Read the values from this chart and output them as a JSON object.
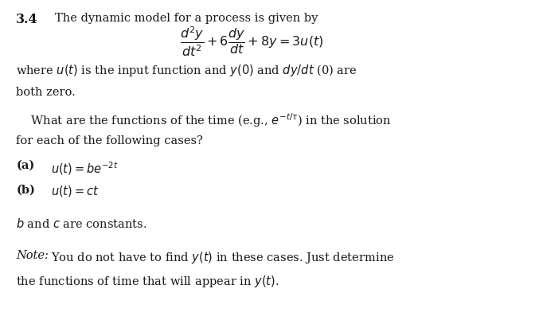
{
  "background_color": "#ffffff",
  "fig_width": 6.72,
  "fig_height": 4.07,
  "dpi": 100,
  "text_color": "#1a1a1a",
  "header_number": "3.4",
  "header_text": "The dynamic model for a process is given by",
  "equation": "$\\dfrac{d^2y}{dt^2} + 6\\dfrac{dy}{dt} + 8y = 3u(t)$",
  "line1": "where $u(t)$ is the input function and $y(0)$ and $dy/dt$ (0) are",
  "line2": "both zero.",
  "line3": "    What are the functions of the time (e.g., $e^{-t/\\tau}$) in the solution",
  "line4": "for each of the following cases?",
  "label_a": "(a)",
  "eq_a": "$u(t) = be^{-2t}$",
  "label_b": "(b)",
  "eq_b": "$u(t) = ct$",
  "line_bc": "$b$ and $c$ are constants.",
  "note_label": "Note:",
  "note_text": "You do not have to find $y(t)$ in these cases. Just determine",
  "note_text2": "the functions of time that will appear in $y(t)$.",
  "header_fontsize": 10.5,
  "body_fontsize": 10.5,
  "equation_fontsize": 11.5,
  "number_fontsize": 11.5,
  "label_ab_fontsize": 10.5
}
